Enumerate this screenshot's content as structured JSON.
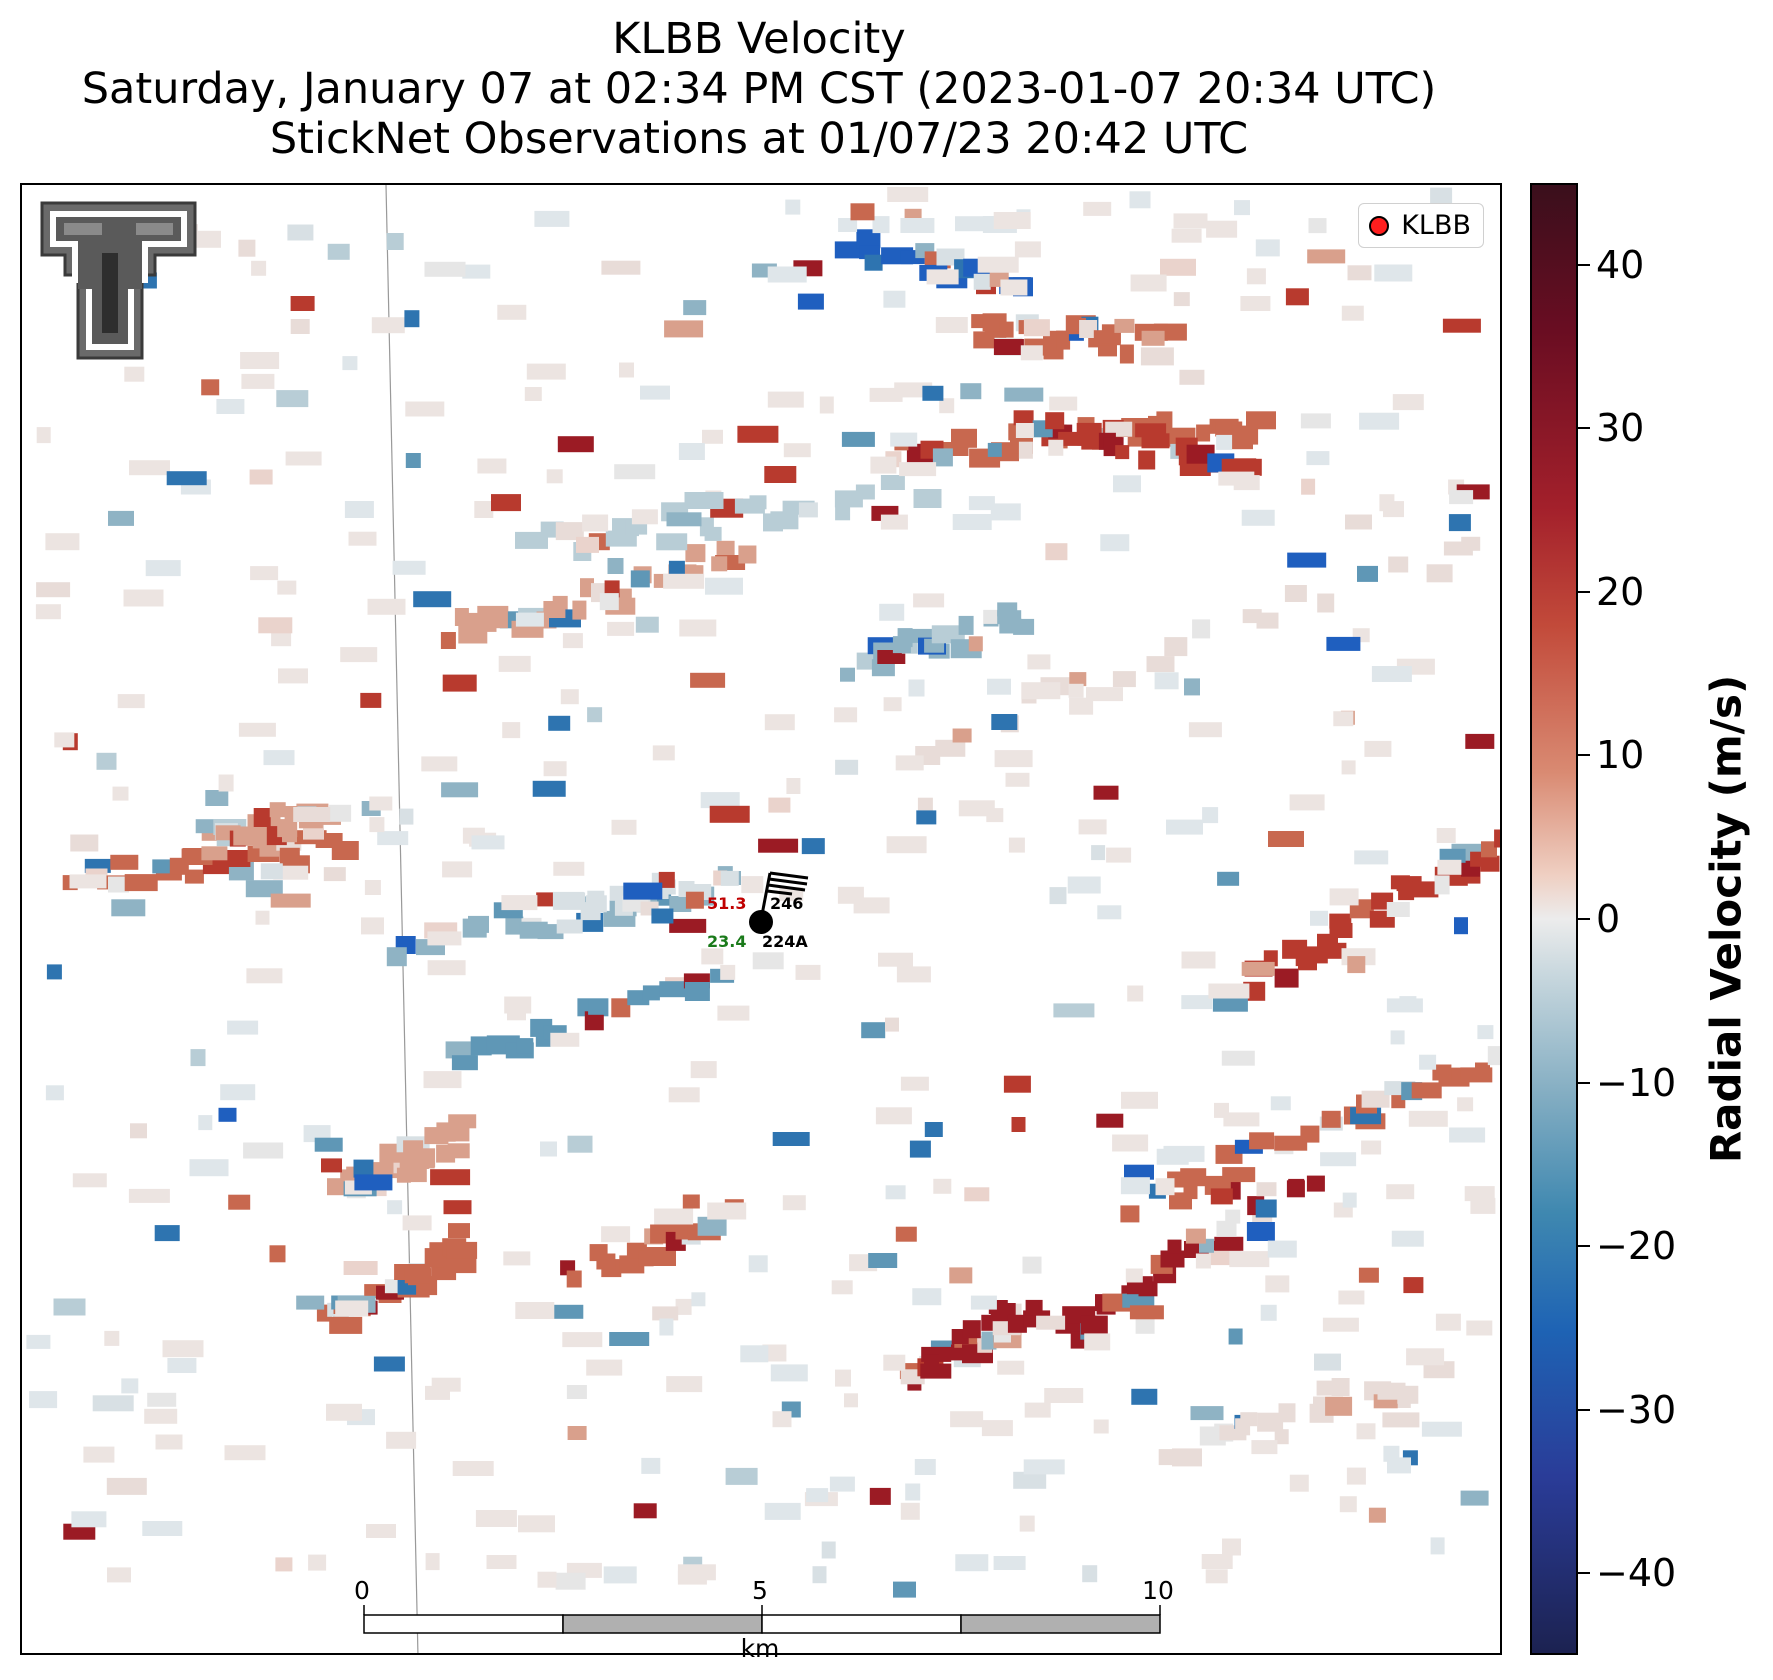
{
  "header": {
    "title": "KLBB Velocity",
    "subtitle": "Saturday, January 07 at 02:34 PM CST (2023-01-07 20:34 UTC)",
    "obs_line": "StickNet Observations at 01/07/23 20:42 UTC"
  },
  "legend": {
    "label": "KLBB",
    "marker_color": "#ff1e1e"
  },
  "colorbar": {
    "label": "Radial Velocity (m/s)",
    "ticks": [
      "40",
      "30",
      "20",
      "10",
      "0",
      "−10",
      "−20",
      "−30",
      "−40"
    ],
    "tick_values": [
      40,
      30,
      20,
      10,
      0,
      -10,
      -20,
      -30,
      -40
    ],
    "range": [
      -45,
      45
    ]
  },
  "scale_bar": {
    "unit": "km",
    "labels": [
      "0",
      "5",
      "10"
    ]
  },
  "station": {
    "temperature": "51.3",
    "dewpoint": "23.4",
    "pressure": "246",
    "id": "224A"
  },
  "logo": {
    "icon": "texas-tech-double-t-logo"
  }
}
